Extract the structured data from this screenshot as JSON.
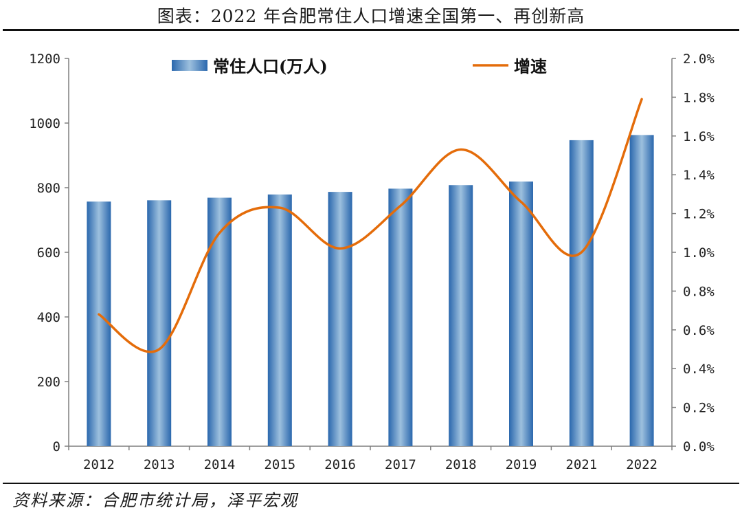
{
  "title": "图表：2022 年合肥常住人口增速全国第一、再创新高",
  "source": "资料来源：合肥市统计局，泽平宏观",
  "chart_data": {
    "type": "bar+line",
    "categories": [
      "2012",
      "2013",
      "2014",
      "2015",
      "2016",
      "2017",
      "2018",
      "2019",
      "2021",
      "2022"
    ],
    "series": [
      {
        "name": "常住人口(万人)",
        "type": "bar",
        "axis": "left",
        "values": [
          757,
          761,
          769,
          779,
          787,
          797,
          808,
          819,
          947,
          963
        ]
      },
      {
        "name": "增速",
        "type": "line",
        "axis": "right",
        "values": [
          0.68,
          0.5,
          1.1,
          1.23,
          1.02,
          1.24,
          1.53,
          1.26,
          1.0,
          1.79
        ]
      }
    ],
    "left_axis": {
      "min": 0,
      "max": 1200,
      "ticks": [
        "0",
        "200",
        "400",
        "600",
        "800",
        "1000",
        "1200"
      ]
    },
    "right_axis": {
      "min": 0,
      "max": 2.0,
      "ticks": [
        "0.0%",
        "0.2%",
        "0.4%",
        "0.6%",
        "0.8%",
        "1.0%",
        "1.2%",
        "1.4%",
        "1.6%",
        "1.8%",
        "2.0%"
      ]
    },
    "legend_position": "top",
    "grid": false,
    "colors": {
      "bar_light": "#9dc0de",
      "bar_dark": "#2a67ad",
      "line": "#e46c0a",
      "axis": "#7f7f7f"
    }
  }
}
